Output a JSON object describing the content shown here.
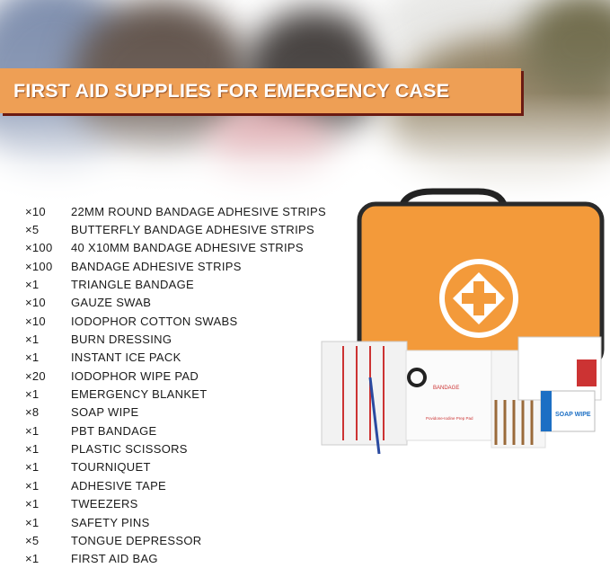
{
  "banner": {
    "title": "FIRST AID SUPPLIES FOR EMERGENCY CASE",
    "color": "#ee9f55",
    "shadow_color": "#6b1a12"
  },
  "items": [
    {
      "qty": "×10",
      "name": "22MM ROUND BANDAGE ADHESIVE STRIPS"
    },
    {
      "qty": "×5",
      "name": "BUTTERFLY BANDAGE ADHESIVE STRIPS"
    },
    {
      "qty": "×100",
      "name": "40 X10MM BANDAGE ADHESIVE STRIPS"
    },
    {
      "qty": "×100",
      "name": "BANDAGE ADHESIVE STRIPS"
    },
    {
      "qty": "×1",
      "name": "TRIANGLE BANDAGE"
    },
    {
      "qty": "×10",
      "name": "GAUZE SWAB"
    },
    {
      "qty": "×10",
      "name": "IODOPHOR COTTON SWABS"
    },
    {
      "qty": "×1",
      "name": "BURN DRESSING"
    },
    {
      "qty": "×1",
      "name": "INSTANT ICE PACK"
    },
    {
      "qty": "×20",
      "name": "IODOPHOR WIPE PAD"
    },
    {
      "qty": "×1",
      "name": "EMERGENCY BLANKET"
    },
    {
      "qty": "×8",
      "name": "SOAP WIPE"
    },
    {
      "qty": "×1",
      "name": "PBT BANDAGE"
    },
    {
      "qty": "×1",
      "name": "PLASTIC SCISSORS"
    },
    {
      "qty": "×1",
      "name": "TOURNIQUET"
    },
    {
      "qty": "×1",
      "name": "ADHESIVE TAPE"
    },
    {
      "qty": "×1",
      "name": "TWEEZERS"
    },
    {
      "qty": "×1",
      "name": "SAFETY PINS"
    },
    {
      "qty": "×5",
      "name": "TONGUE DEPRESSOR"
    },
    {
      "qty": "×1",
      "name": "FIRST AID BAG"
    }
  ],
  "product": {
    "bag_color": "#f39a3a",
    "labels": {
      "bandage": "BANDAGE",
      "prep_pad": "Povidone-Iodine Prep Pad",
      "soap_wipe": "SOAP WIPE"
    }
  }
}
